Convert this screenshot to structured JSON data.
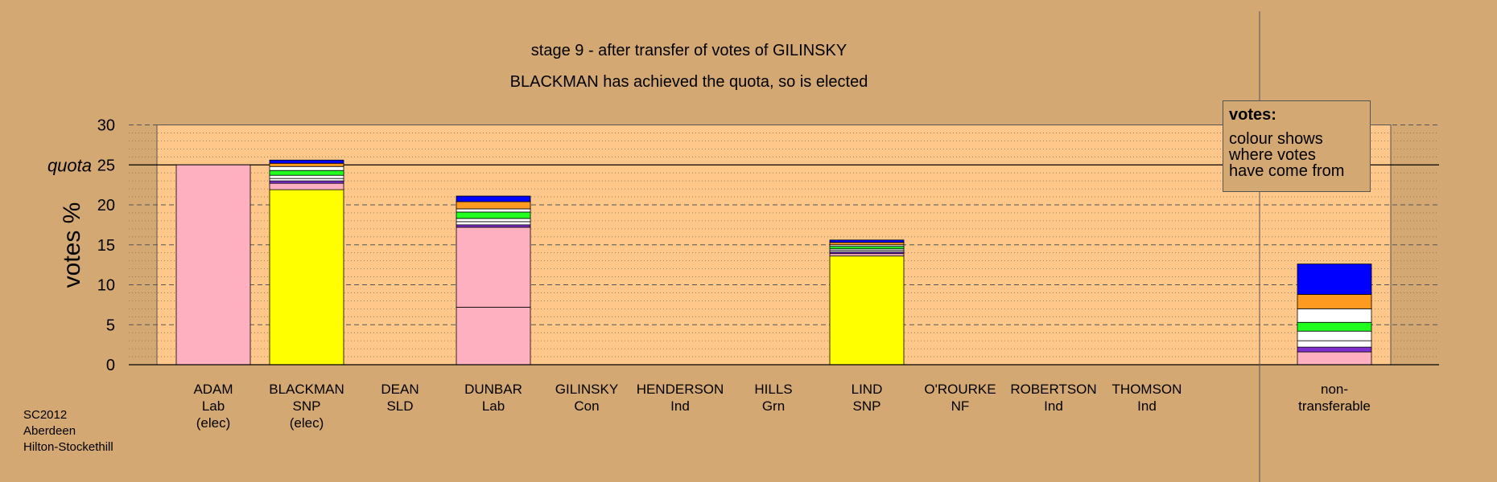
{
  "title": "stage 9 - after transfer of votes of GILINSKY",
  "subtitle": "BLACKMAN has achieved the quota, so is elected",
  "footer": [
    "SC2012",
    "Aberdeen",
    "Hilton-Stockethill"
  ],
  "legend": {
    "title": "votes:",
    "lines": [
      "colour shows",
      "where votes",
      "have come from"
    ]
  },
  "chart_data": {
    "type": "bar",
    "stacked": true,
    "ylabel": "votes %",
    "ylim": [
      0,
      30
    ],
    "yticks": [
      "0",
      "5",
      "10",
      "15",
      "20",
      "25",
      "30"
    ],
    "quota": 25,
    "quota_label": "quota",
    "grid": true,
    "colors": {
      "Lab": "#ffb0c0",
      "SNP": "#ffff00",
      "Con": "#0000ff",
      "SLD": "#ff9a20",
      "Grn": "#20ff20",
      "NF": "#8030d0",
      "Ind": "#ffffff",
      "background": "#d4a872",
      "plot_area": "#ffc88a"
    },
    "candidates": [
      {
        "name": "ADAM",
        "party": "Lab",
        "status": "(elec)",
        "segments": [
          {
            "from": "Lab",
            "value": 25.0
          }
        ]
      },
      {
        "name": "BLACKMAN",
        "party": "SNP",
        "status": "(elec)",
        "segments": [
          {
            "from": "SNP",
            "value": 21.9
          },
          {
            "from": "Lab",
            "value": 0.8
          },
          {
            "from": "NF",
            "value": 0.3
          },
          {
            "from": "Ind",
            "value": 0.3
          },
          {
            "from": "Ind",
            "value": 0.4
          },
          {
            "from": "Grn",
            "value": 0.6
          },
          {
            "from": "Ind",
            "value": 0.5
          },
          {
            "from": "SLD",
            "value": 0.4
          },
          {
            "from": "Con",
            "value": 0.4
          }
        ]
      },
      {
        "name": "DEAN",
        "party": "SLD",
        "status": "",
        "segments": []
      },
      {
        "name": "DUNBAR",
        "party": "Lab",
        "status": "",
        "segments": [
          {
            "from": "Lab",
            "value": 7.2
          },
          {
            "from": "Lab",
            "value": 10.0
          },
          {
            "from": "NF",
            "value": 0.3
          },
          {
            "from": "Ind",
            "value": 0.4
          },
          {
            "from": "Ind",
            "value": 0.4
          },
          {
            "from": "Grn",
            "value": 0.8
          },
          {
            "from": "Ind",
            "value": 0.4
          },
          {
            "from": "SLD",
            "value": 0.9
          },
          {
            "from": "Con",
            "value": 0.7
          }
        ]
      },
      {
        "name": "GILINSKY",
        "party": "Con",
        "status": "",
        "segments": []
      },
      {
        "name": "HENDERSON",
        "party": "Ind",
        "status": "",
        "segments": []
      },
      {
        "name": "HILLS",
        "party": "Grn",
        "status": "",
        "segments": []
      },
      {
        "name": "LIND",
        "party": "SNP",
        "status": "",
        "segments": [
          {
            "from": "SNP",
            "value": 13.6
          },
          {
            "from": "Lab",
            "value": 0.3
          },
          {
            "from": "NF",
            "value": 0.2
          },
          {
            "from": "Ind",
            "value": 0.2
          },
          {
            "from": "Ind",
            "value": 0.2
          },
          {
            "from": "Grn",
            "value": 0.3
          },
          {
            "from": "Ind",
            "value": 0.2
          },
          {
            "from": "SLD",
            "value": 0.3
          },
          {
            "from": "Con",
            "value": 0.3
          }
        ]
      },
      {
        "name": "O'ROURKE",
        "party": "NF",
        "status": "",
        "segments": []
      },
      {
        "name": "ROBERTSON",
        "party": "Ind",
        "status": "",
        "segments": []
      },
      {
        "name": "THOMSON",
        "party": "Ind",
        "status": "",
        "segments": []
      }
    ],
    "nontransferable": {
      "label": "non-",
      "label2": "transferable",
      "segments": [
        {
          "from": "Lab",
          "value": 1.6
        },
        {
          "from": "NF",
          "value": 0.6
        },
        {
          "from": "Ind",
          "value": 0.8
        },
        {
          "from": "Ind",
          "value": 1.2
        },
        {
          "from": "Grn",
          "value": 1.1
        },
        {
          "from": "Ind",
          "value": 1.7
        },
        {
          "from": "SLD",
          "value": 1.8
        },
        {
          "from": "Con",
          "value": 3.8
        }
      ]
    }
  }
}
